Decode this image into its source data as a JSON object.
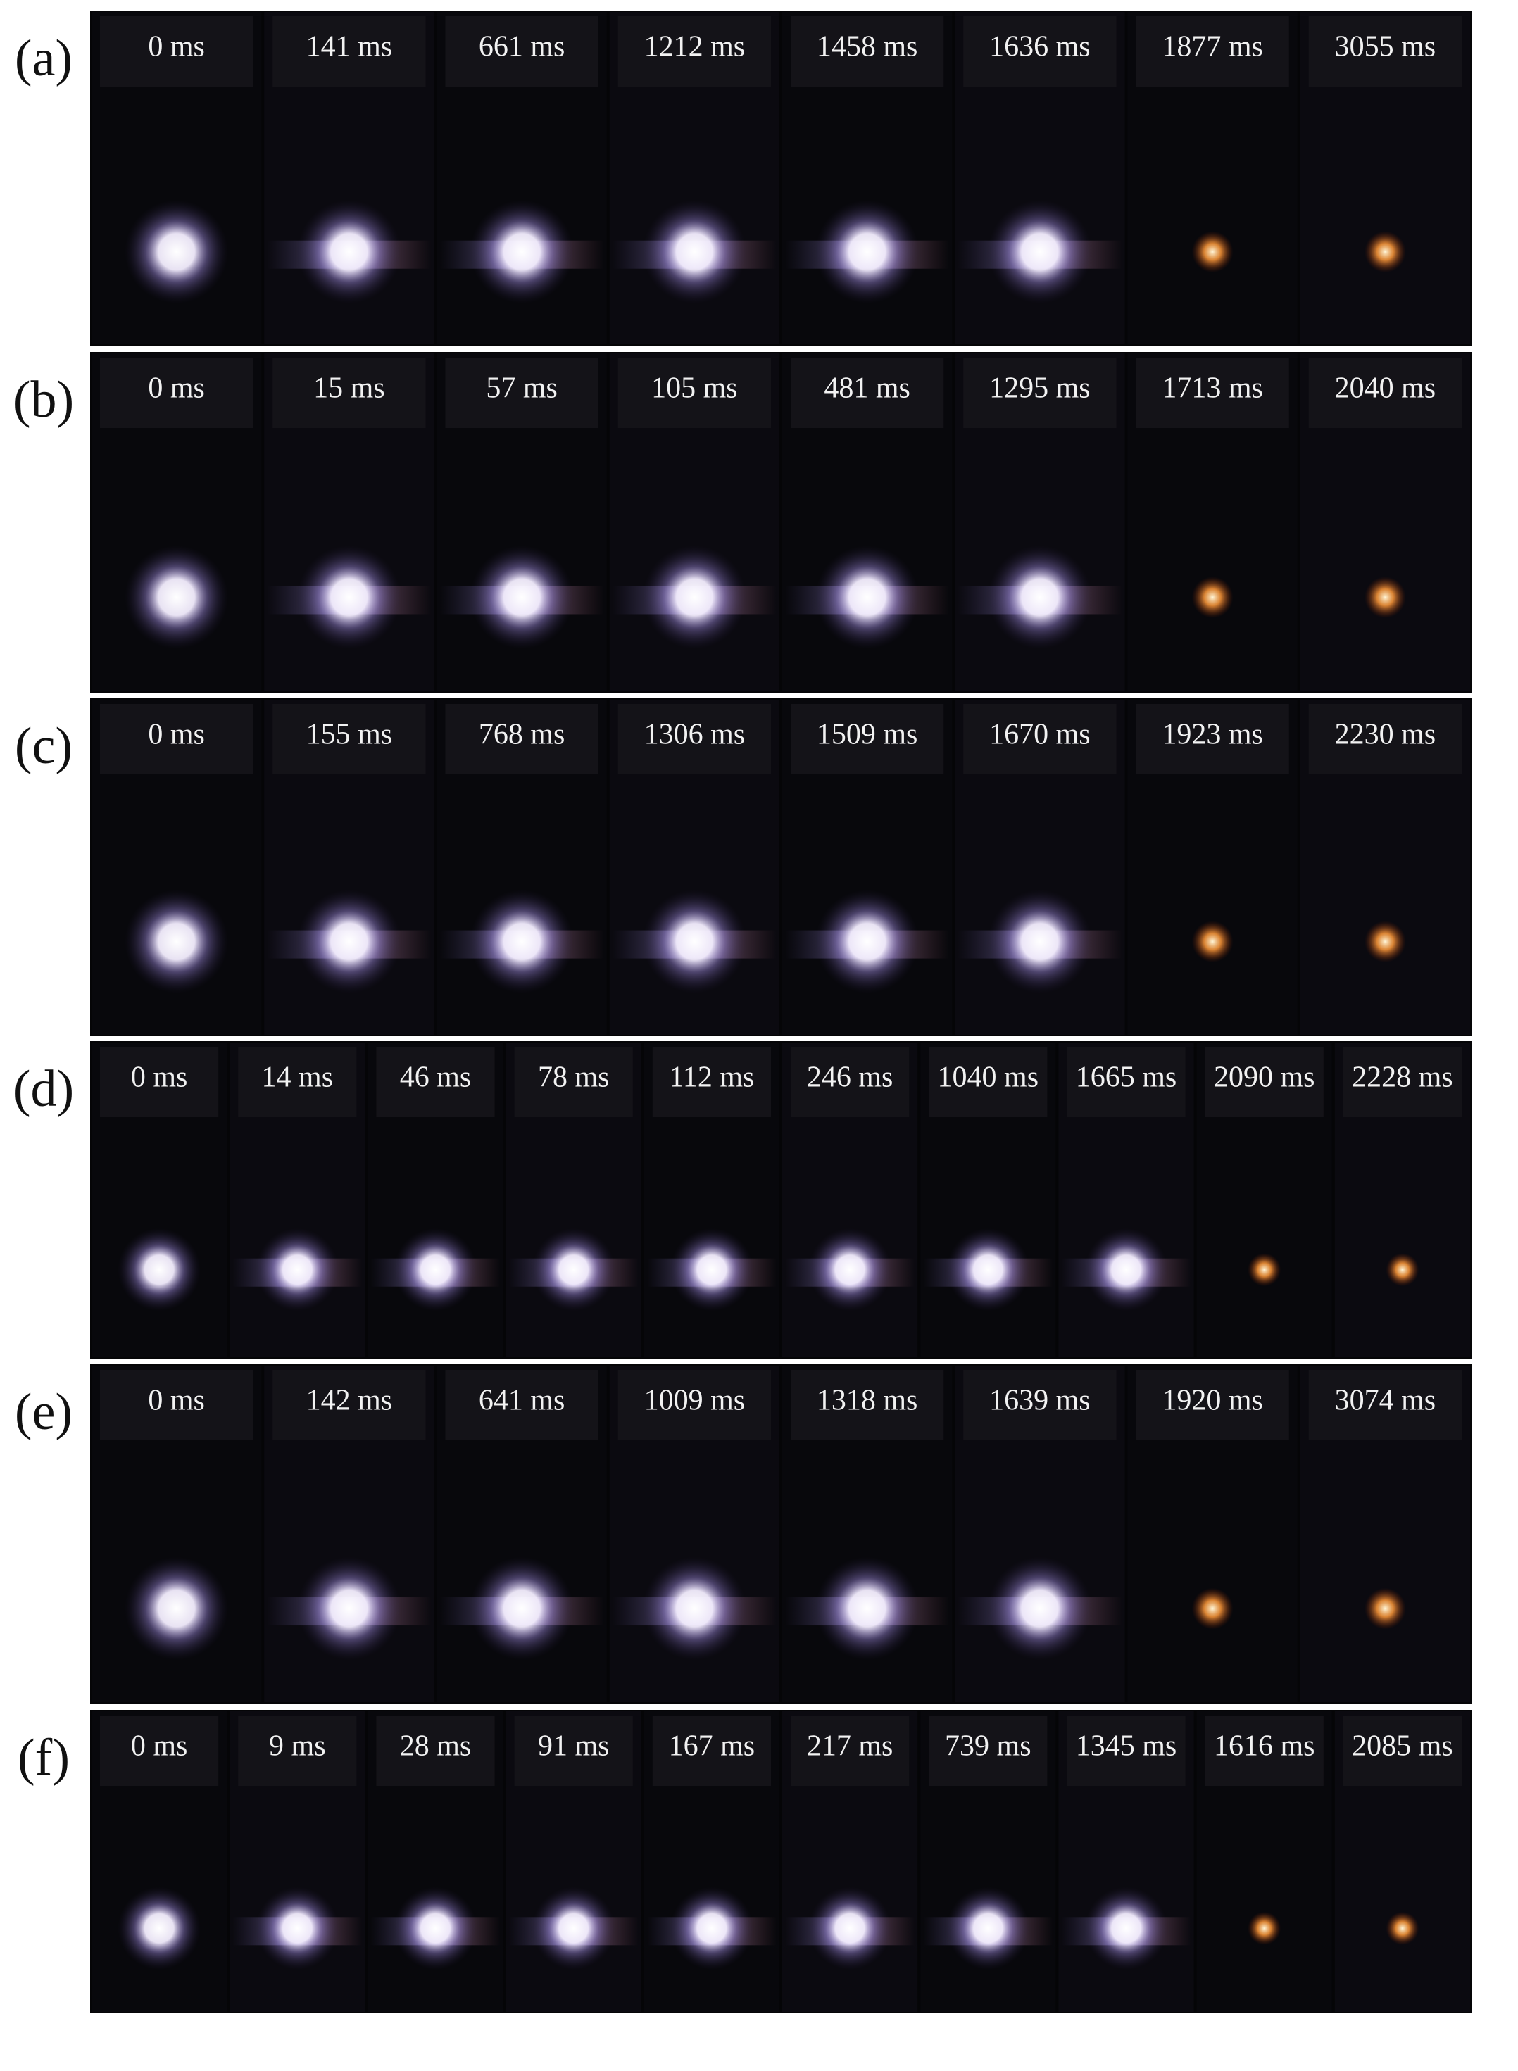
{
  "rows": [
    {
      "label": "(a)",
      "frames": [
        "0 ms",
        "141 ms",
        "661 ms",
        "1212 ms",
        "1458 ms",
        "1636 ms",
        "1877 ms",
        "3055 ms"
      ]
    },
    {
      "label": "(b)",
      "frames": [
        "0 ms",
        "15 ms",
        "57 ms",
        "105 ms",
        "481 ms",
        "1295 ms",
        "1713 ms",
        "2040 ms"
      ]
    },
    {
      "label": "(c)",
      "frames": [
        "0 ms",
        "155 ms",
        "768 ms",
        "1306 ms",
        "1509 ms",
        "1670 ms",
        "1923 ms",
        "2230 ms"
      ]
    },
    {
      "label": "(d)",
      "frames": [
        "0 ms",
        "14 ms",
        "46 ms",
        "78 ms",
        "112 ms",
        "246 ms",
        "1040 ms",
        "1665 ms",
        "2090 ms",
        "2228 ms"
      ]
    },
    {
      "label": "(e)",
      "frames": [
        "0 ms",
        "142 ms",
        "641 ms",
        "1009 ms",
        "1318 ms",
        "1639 ms",
        "1920 ms",
        "3074 ms"
      ]
    },
    {
      "label": "(f)",
      "frames": [
        "0 ms",
        "9 ms",
        "28 ms",
        "91 ms",
        "167 ms",
        "217 ms",
        "739 ms",
        "1345 ms",
        "1616 ms",
        "2085 ms"
      ]
    }
  ]
}
